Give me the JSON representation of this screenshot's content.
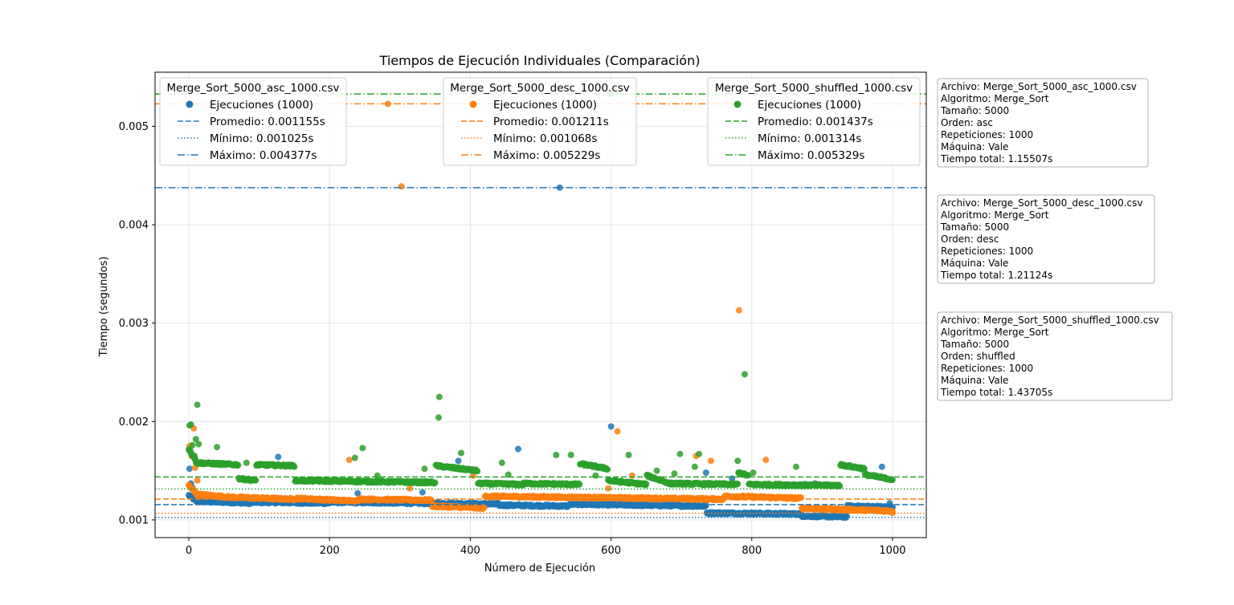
{
  "chart_data": {
    "type": "scatter",
    "title": "Tiempos de Ejecución Individuales (Comparación)",
    "xlabel": "Número de Ejecución",
    "ylabel": "Tiempo (segundos)",
    "xlim": [
      -48,
      1048
    ],
    "ylim": [
      0.00082,
      0.00555
    ],
    "x_ticks": [
      0,
      200,
      400,
      600,
      800,
      1000
    ],
    "x_tick_labels": [
      "0",
      "200",
      "400",
      "600",
      "800",
      "1000"
    ],
    "y_ticks": [
      0.001,
      0.002,
      0.003,
      0.004,
      0.005
    ],
    "y_tick_labels": [
      "0.001",
      "0.002",
      "0.003",
      "0.004",
      "0.005"
    ],
    "grid": true,
    "series": [
      {
        "name": "Merge_Sort_5000_asc_1000.csv",
        "color": "#1f77b4",
        "scatter_label": "Ejecuciones (1000)",
        "mean_label": "Promedio: 0.001155s",
        "min_label": "Mínimo: 0.001025s",
        "max_label": "Máximo: 0.004377s",
        "mean": 0.001155,
        "min": 0.001025,
        "max": 0.004377,
        "segments": [
          [
            0,
            9,
            0.00125,
            0.0012
          ],
          [
            10,
            90,
            0.00119,
            0.00117
          ],
          [
            91,
            200,
            0.00118,
            0.00117
          ],
          [
            201,
            330,
            0.00118,
            0.00117
          ],
          [
            331,
            440,
            0.00117,
            0.00116
          ],
          [
            441,
            540,
            0.00115,
            0.00114
          ],
          [
            541,
            735,
            0.00116,
            0.00114
          ],
          [
            736,
            870,
            0.00107,
            0.00106
          ],
          [
            871,
            935,
            0.00104,
            0.00103
          ],
          [
            936,
            1000,
            0.00114,
            0.00113
          ]
        ],
        "outliers": [
          [
            1,
            0.00152
          ],
          [
            3,
            0.00137
          ],
          [
            5,
            0.00133
          ],
          [
            8,
            0.00129
          ],
          [
            12,
            0.00124
          ],
          [
            127,
            0.00164
          ],
          [
            240,
            0.00127
          ],
          [
            332,
            0.00128
          ],
          [
            383,
            0.0016
          ],
          [
            468,
            0.00172
          ],
          [
            527,
            0.004377
          ],
          [
            600,
            0.00195
          ],
          [
            735,
            0.00148
          ],
          [
            772,
            0.00142
          ],
          [
            890,
            0.00137
          ],
          [
            985,
            0.00154
          ],
          [
            996,
            0.00117
          ],
          [
            999,
            0.00112
          ]
        ]
      },
      {
        "name": "Merge_Sort_5000_desc_1000.csv",
        "color": "#ff7f0e",
        "scatter_label": "Ejecuciones (1000)",
        "mean_label": "Promedio: 0.001211s",
        "min_label": "Mínimo: 0.001068s",
        "max_label": "Máximo: 0.005229s",
        "mean": 0.001211,
        "min": 0.001068,
        "max": 0.005229,
        "segments": [
          [
            0,
            9,
            0.00135,
            0.00128
          ],
          [
            10,
            60,
            0.00126,
            0.00123
          ],
          [
            61,
            150,
            0.00123,
            0.00121
          ],
          [
            151,
            240,
            0.00122,
            0.00119
          ],
          [
            241,
            345,
            0.00121,
            0.0012
          ],
          [
            346,
            420,
            0.00114,
            0.00112
          ],
          [
            421,
            760,
            0.00124,
            0.00121
          ],
          [
            761,
            870,
            0.00124,
            0.00122
          ],
          [
            871,
            1000,
            0.00112,
            0.00109
          ]
        ],
        "outliers": [
          [
            1,
            0.00175
          ],
          [
            4,
            0.00165
          ],
          [
            7,
            0.00193
          ],
          [
            9,
            0.00153
          ],
          [
            12,
            0.0014
          ],
          [
            228,
            0.00161
          ],
          [
            283,
            0.005229
          ],
          [
            302,
            0.00439
          ],
          [
            314,
            0.00132
          ],
          [
            404,
            0.00145
          ],
          [
            596,
            0.00132
          ],
          [
            609,
            0.0019
          ],
          [
            630,
            0.00145
          ],
          [
            721,
            0.00165
          ],
          [
            742,
            0.0016
          ],
          [
            782,
            0.00313
          ],
          [
            820,
            0.00161
          ],
          [
            1000,
            0.00107
          ]
        ]
      },
      {
        "name": "Merge_Sort_5000_shuffled_1000.csv",
        "color": "#2ca02c",
        "scatter_label": "Ejecuciones (1000)",
        "mean_label": "Promedio: 0.001437s",
        "min_label": "Mínimo: 0.001314s",
        "max_label": "Máximo: 0.005329s",
        "mean": 0.001437,
        "min": 0.001314,
        "max": 0.005329,
        "segments": [
          [
            0,
            9,
            0.00172,
            0.00162
          ],
          [
            10,
            70,
            0.00158,
            0.00156
          ],
          [
            71,
            95,
            0.00142,
            0.0014
          ],
          [
            96,
            150,
            0.00156,
            0.00155
          ],
          [
            151,
            350,
            0.0014,
            0.00138
          ],
          [
            351,
            410,
            0.00155,
            0.0015
          ],
          [
            411,
            475,
            0.00137,
            0.00136
          ],
          [
            476,
            555,
            0.00137,
            0.00136
          ],
          [
            556,
            595,
            0.00157,
            0.00152
          ],
          [
            596,
            650,
            0.0014,
            0.00136
          ],
          [
            651,
            680,
            0.00145,
            0.00138
          ],
          [
            681,
            780,
            0.00137,
            0.00136
          ],
          [
            781,
            795,
            0.00148,
            0.00145
          ],
          [
            796,
            925,
            0.00136,
            0.00135
          ],
          [
            926,
            960,
            0.00156,
            0.00152
          ],
          [
            961,
            1000,
            0.00146,
            0.00141
          ]
        ],
        "outliers": [
          [
            1,
            0.00196
          ],
          [
            3,
            0.00197
          ],
          [
            5,
            0.00176
          ],
          [
            8,
            0.00165
          ],
          [
            10,
            0.00182
          ],
          [
            12,
            0.00217
          ],
          [
            14,
            0.00177
          ],
          [
            40,
            0.00174
          ],
          [
            82,
            0.00158
          ],
          [
            236,
            0.00163
          ],
          [
            247,
            0.00173
          ],
          [
            268,
            0.00145
          ],
          [
            335,
            0.00152
          ],
          [
            355,
            0.00204
          ],
          [
            356,
            0.00225
          ],
          [
            387,
            0.00168
          ],
          [
            445,
            0.00158
          ],
          [
            454,
            0.00146
          ],
          [
            522,
            0.00166
          ],
          [
            543,
            0.00166
          ],
          [
            578,
            0.00145
          ],
          [
            600,
            0.005329
          ],
          [
            625,
            0.00166
          ],
          [
            665,
            0.0015
          ],
          [
            690,
            0.00147
          ],
          [
            698,
            0.00167
          ],
          [
            719,
            0.00154
          ],
          [
            725,
            0.00167
          ],
          [
            780,
            0.0016
          ],
          [
            790,
            0.00248
          ],
          [
            802,
            0.00148
          ],
          [
            863,
            0.00154
          ]
        ]
      }
    ]
  },
  "info_boxes": [
    {
      "lines": [
        "Archivo: Merge_Sort_5000_asc_1000.csv",
        "Algoritmo: Merge_Sort",
        "Tamaño: 5000",
        "Orden: asc",
        "Repeticiones: 1000",
        "Máquina: Vale",
        "Tiempo total: 1.15507s"
      ]
    },
    {
      "lines": [
        "Archivo: Merge_Sort_5000_desc_1000.csv",
        "Algoritmo: Merge_Sort",
        "Tamaño: 5000",
        "Orden: desc",
        "Repeticiones: 1000",
        "Máquina: Vale",
        "Tiempo total: 1.21124s"
      ]
    },
    {
      "lines": [
        "Archivo: Merge_Sort_5000_shuffled_1000.csv",
        "Algoritmo: Merge_Sort",
        "Tamaño: 5000",
        "Orden: shuffled",
        "Repeticiones: 1000",
        "Máquina: Vale",
        "Tiempo total: 1.43705s"
      ]
    }
  ]
}
